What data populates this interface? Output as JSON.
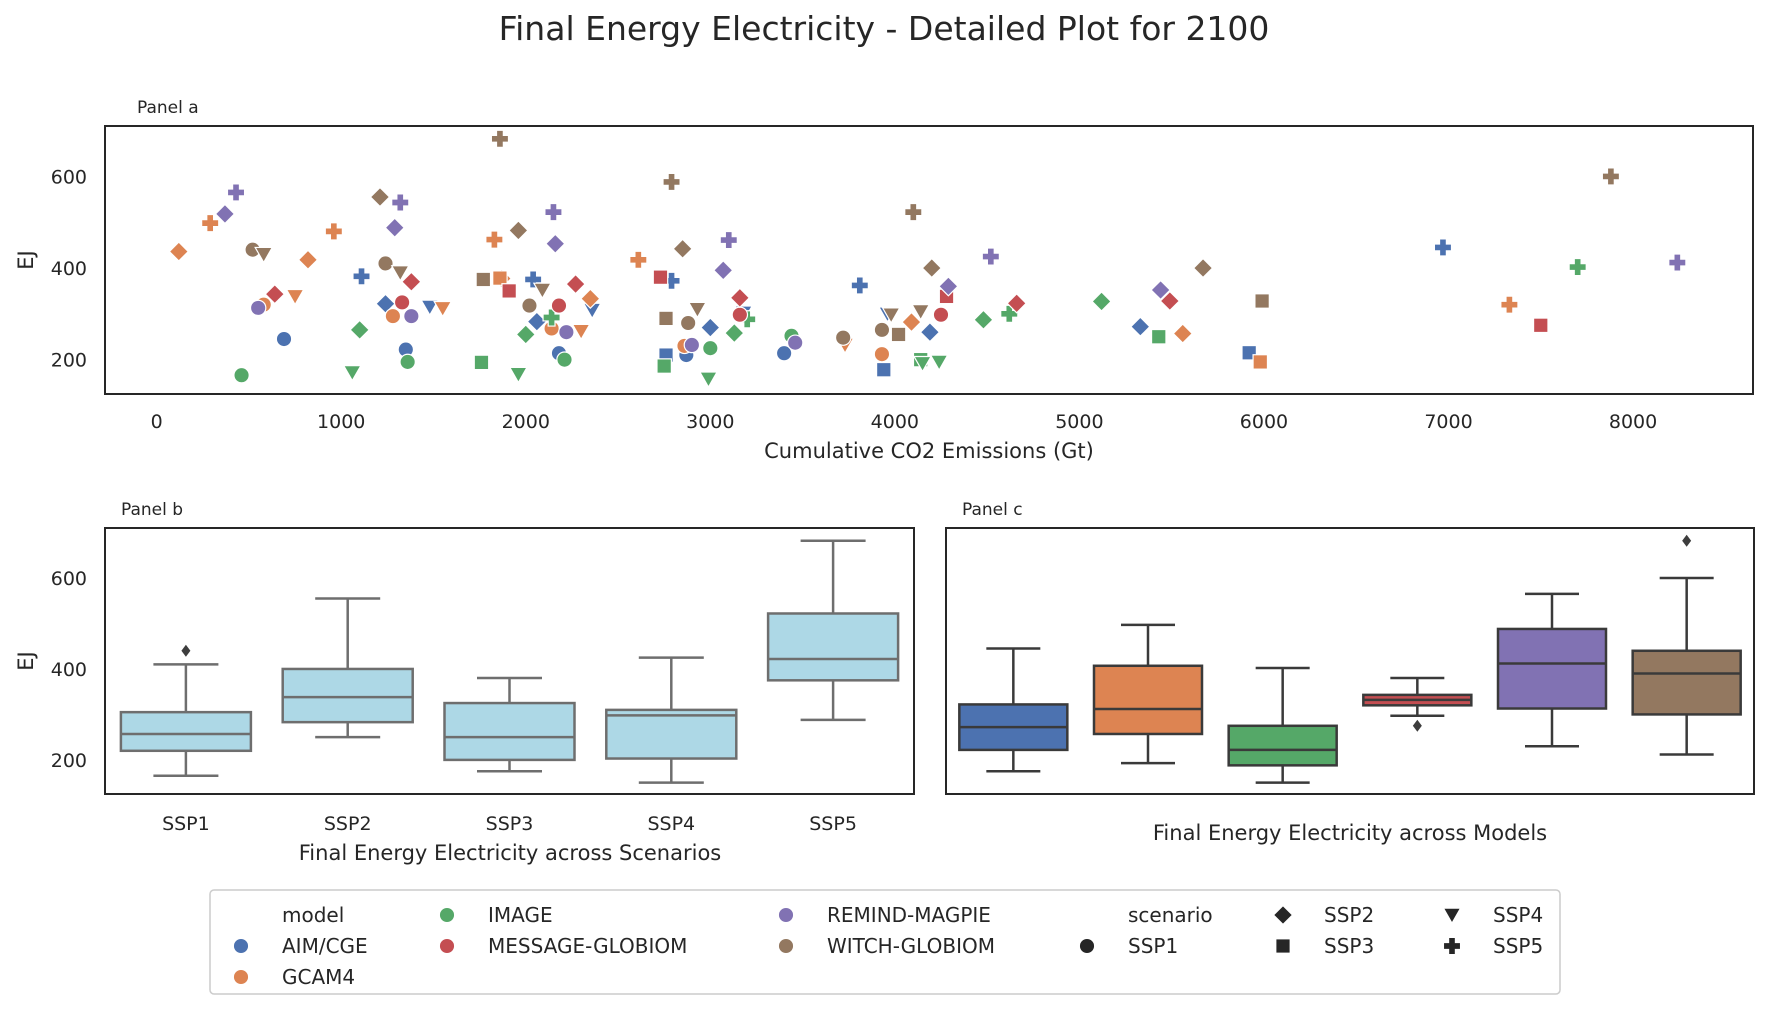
{
  "title": "Final Energy Electricity - Detailed Plot for 2100",
  "colors": {
    "AIM/CGE": "#4c72b0",
    "GCAM4": "#dd8452",
    "IMAGE": "#55a868",
    "MESSAGE-GLOBIOM": "#c44e52",
    "REMIND-MAGPIE": "#8172b3",
    "WITCH-GLOBIOM": "#937860",
    "box_scenario": "#add8e6",
    "box_edge": "#6e6e6e",
    "axis": "#262626"
  },
  "markers": {
    "SSP1": "circle",
    "SSP2": "diamond",
    "SSP3": "square",
    "SSP4": "triangle-down",
    "SSP5": "plus"
  },
  "chart_data": [
    {
      "type": "scatter",
      "panel_label": "Panel a",
      "xlabel": "Cumulative CO2 Emissions (Gt)",
      "ylabel": "EJ",
      "xlim": [
        -280,
        8650
      ],
      "ylim": [
        125,
        710
      ],
      "xticks": [
        0,
        1000,
        2000,
        3000,
        4000,
        5000,
        6000,
        7000,
        8000
      ],
      "yticks": [
        200,
        400,
        600
      ],
      "grid": false,
      "points": [
        {
          "model": "AIM/CGE",
          "scenario": "SSP1",
          "x": 690,
          "y": 245
        },
        {
          "model": "AIM/CGE",
          "scenario": "SSP1",
          "x": 1350,
          "y": 222
        },
        {
          "model": "AIM/CGE",
          "scenario": "SSP1",
          "x": 2180,
          "y": 214
        },
        {
          "model": "AIM/CGE",
          "scenario": "SSP1",
          "x": 2870,
          "y": 210
        },
        {
          "model": "AIM/CGE",
          "scenario": "SSP1",
          "x": 3400,
          "y": 214
        },
        {
          "model": "AIM/CGE",
          "scenario": "SSP2",
          "x": 1240,
          "y": 322
        },
        {
          "model": "AIM/CGE",
          "scenario": "SSP2",
          "x": 2060,
          "y": 283
        },
        {
          "model": "AIM/CGE",
          "scenario": "SSP2",
          "x": 3000,
          "y": 270
        },
        {
          "model": "AIM/CGE",
          "scenario": "SSP2",
          "x": 4190,
          "y": 260
        },
        {
          "model": "AIM/CGE",
          "scenario": "SSP2",
          "x": 5330,
          "y": 272
        },
        {
          "model": "AIM/CGE",
          "scenario": "SSP3",
          "x": 3940,
          "y": 178
        },
        {
          "model": "AIM/CGE",
          "scenario": "SSP3",
          "x": 5920,
          "y": 215
        },
        {
          "model": "AIM/CGE",
          "scenario": "SSP3",
          "x": 2760,
          "y": 210
        },
        {
          "model": "AIM/CGE",
          "scenario": "SSP4",
          "x": 1480,
          "y": 315
        },
        {
          "model": "AIM/CGE",
          "scenario": "SSP4",
          "x": 2360,
          "y": 308
        },
        {
          "model": "AIM/CGE",
          "scenario": "SSP4",
          "x": 3180,
          "y": 302
        },
        {
          "model": "AIM/CGE",
          "scenario": "SSP4",
          "x": 3960,
          "y": 300
        },
        {
          "model": "AIM/CGE",
          "scenario": "SSP5",
          "x": 1110,
          "y": 382
        },
        {
          "model": "AIM/CGE",
          "scenario": "SSP5",
          "x": 2040,
          "y": 375
        },
        {
          "model": "AIM/CGE",
          "scenario": "SSP5",
          "x": 2790,
          "y": 372
        },
        {
          "model": "AIM/CGE",
          "scenario": "SSP5",
          "x": 3810,
          "y": 362
        },
        {
          "model": "AIM/CGE",
          "scenario": "SSP5",
          "x": 6970,
          "y": 445
        },
        {
          "model": "GCAM4",
          "scenario": "SSP1",
          "x": 580,
          "y": 320
        },
        {
          "model": "GCAM4",
          "scenario": "SSP1",
          "x": 1280,
          "y": 295
        },
        {
          "model": "GCAM4",
          "scenario": "SSP1",
          "x": 2140,
          "y": 268
        },
        {
          "model": "GCAM4",
          "scenario": "SSP1",
          "x": 2860,
          "y": 230
        },
        {
          "model": "GCAM4",
          "scenario": "SSP1",
          "x": 3930,
          "y": 212
        },
        {
          "model": "GCAM4",
          "scenario": "SSP2",
          "x": 120,
          "y": 436
        },
        {
          "model": "GCAM4",
          "scenario": "SSP2",
          "x": 820,
          "y": 418
        },
        {
          "model": "GCAM4",
          "scenario": "SSP2",
          "x": 1870,
          "y": 377
        },
        {
          "model": "GCAM4",
          "scenario": "SSP2",
          "x": 2350,
          "y": 333
        },
        {
          "model": "GCAM4",
          "scenario": "SSP2",
          "x": 4090,
          "y": 282
        },
        {
          "model": "GCAM4",
          "scenario": "SSP2",
          "x": 5560,
          "y": 257
        },
        {
          "model": "GCAM4",
          "scenario": "SSP3",
          "x": 1860,
          "y": 378
        },
        {
          "model": "GCAM4",
          "scenario": "SSP3",
          "x": 5980,
          "y": 195
        },
        {
          "model": "GCAM4",
          "scenario": "SSP4",
          "x": 750,
          "y": 338
        },
        {
          "model": "GCAM4",
          "scenario": "SSP4",
          "x": 1550,
          "y": 312
        },
        {
          "model": "GCAM4",
          "scenario": "SSP4",
          "x": 2300,
          "y": 262
        },
        {
          "model": "GCAM4",
          "scenario": "SSP4",
          "x": 3730,
          "y": 232
        },
        {
          "model": "GCAM4",
          "scenario": "SSP5",
          "x": 290,
          "y": 498
        },
        {
          "model": "GCAM4",
          "scenario": "SSP5",
          "x": 960,
          "y": 480
        },
        {
          "model": "GCAM4",
          "scenario": "SSP5",
          "x": 1830,
          "y": 462
        },
        {
          "model": "GCAM4",
          "scenario": "SSP5",
          "x": 2610,
          "y": 418
        },
        {
          "model": "GCAM4",
          "scenario": "SSP5",
          "x": 7330,
          "y": 320
        },
        {
          "model": "IMAGE",
          "scenario": "SSP1",
          "x": 460,
          "y": 166
        },
        {
          "model": "IMAGE",
          "scenario": "SSP1",
          "x": 1360,
          "y": 195
        },
        {
          "model": "IMAGE",
          "scenario": "SSP1",
          "x": 2210,
          "y": 200
        },
        {
          "model": "IMAGE",
          "scenario": "SSP1",
          "x": 3000,
          "y": 225
        },
        {
          "model": "IMAGE",
          "scenario": "SSP1",
          "x": 3440,
          "y": 252
        },
        {
          "model": "IMAGE",
          "scenario": "SSP2",
          "x": 1100,
          "y": 265
        },
        {
          "model": "IMAGE",
          "scenario": "SSP2",
          "x": 2000,
          "y": 255
        },
        {
          "model": "IMAGE",
          "scenario": "SSP2",
          "x": 3130,
          "y": 258
        },
        {
          "model": "IMAGE",
          "scenario": "SSP2",
          "x": 4480,
          "y": 287
        },
        {
          "model": "IMAGE",
          "scenario": "SSP2",
          "x": 5120,
          "y": 327
        },
        {
          "model": "IMAGE",
          "scenario": "SSP3",
          "x": 1760,
          "y": 194
        },
        {
          "model": "IMAGE",
          "scenario": "SSP3",
          "x": 2750,
          "y": 186
        },
        {
          "model": "IMAGE",
          "scenario": "SSP3",
          "x": 5430,
          "y": 250
        },
        {
          "model": "IMAGE",
          "scenario": "SSP3",
          "x": 4140,
          "y": 200
        },
        {
          "model": "IMAGE",
          "scenario": "SSP4",
          "x": 1060,
          "y": 172
        },
        {
          "model": "IMAGE",
          "scenario": "SSP4",
          "x": 1960,
          "y": 168
        },
        {
          "model": "IMAGE",
          "scenario": "SSP4",
          "x": 2990,
          "y": 158
        },
        {
          "model": "IMAGE",
          "scenario": "SSP4",
          "x": 4150,
          "y": 192
        },
        {
          "model": "IMAGE",
          "scenario": "SSP4",
          "x": 4240,
          "y": 195
        },
        {
          "model": "IMAGE",
          "scenario": "SSP5",
          "x": 2140,
          "y": 292
        },
        {
          "model": "IMAGE",
          "scenario": "SSP5",
          "x": 4620,
          "y": 300
        },
        {
          "model": "IMAGE",
          "scenario": "SSP5",
          "x": 7700,
          "y": 402
        },
        {
          "model": "IMAGE",
          "scenario": "SSP5",
          "x": 3200,
          "y": 288
        },
        {
          "model": "MESSAGE-GLOBIOM",
          "scenario": "SSP1",
          "x": 1330,
          "y": 325
        },
        {
          "model": "MESSAGE-GLOBIOM",
          "scenario": "SSP1",
          "x": 2180,
          "y": 318
        },
        {
          "model": "MESSAGE-GLOBIOM",
          "scenario": "SSP1",
          "x": 3160,
          "y": 298
        },
        {
          "model": "MESSAGE-GLOBIOM",
          "scenario": "SSP1",
          "x": 4250,
          "y": 298
        },
        {
          "model": "MESSAGE-GLOBIOM",
          "scenario": "SSP2",
          "x": 640,
          "y": 343
        },
        {
          "model": "MESSAGE-GLOBIOM",
          "scenario": "SSP2",
          "x": 1380,
          "y": 370
        },
        {
          "model": "MESSAGE-GLOBIOM",
          "scenario": "SSP2",
          "x": 2270,
          "y": 365
        },
        {
          "model": "MESSAGE-GLOBIOM",
          "scenario": "SSP2",
          "x": 3160,
          "y": 335
        },
        {
          "model": "MESSAGE-GLOBIOM",
          "scenario": "SSP2",
          "x": 4660,
          "y": 323
        },
        {
          "model": "MESSAGE-GLOBIOM",
          "scenario": "SSP2",
          "x": 5490,
          "y": 328
        },
        {
          "model": "MESSAGE-GLOBIOM",
          "scenario": "SSP3",
          "x": 1910,
          "y": 350
        },
        {
          "model": "MESSAGE-GLOBIOM",
          "scenario": "SSP3",
          "x": 2730,
          "y": 380
        },
        {
          "model": "MESSAGE-GLOBIOM",
          "scenario": "SSP3",
          "x": 4280,
          "y": 338
        },
        {
          "model": "MESSAGE-GLOBIOM",
          "scenario": "SSP3",
          "x": 7500,
          "y": 275
        },
        {
          "model": "REMIND-MAGPIE",
          "scenario": "SSP1",
          "x": 550,
          "y": 313
        },
        {
          "model": "REMIND-MAGPIE",
          "scenario": "SSP1",
          "x": 1380,
          "y": 295
        },
        {
          "model": "REMIND-MAGPIE",
          "scenario": "SSP1",
          "x": 2220,
          "y": 260
        },
        {
          "model": "REMIND-MAGPIE",
          "scenario": "SSP1",
          "x": 2900,
          "y": 232
        },
        {
          "model": "REMIND-MAGPIE",
          "scenario": "SSP1",
          "x": 3460,
          "y": 237
        },
        {
          "model": "REMIND-MAGPIE",
          "scenario": "SSP2",
          "x": 370,
          "y": 518
        },
        {
          "model": "REMIND-MAGPIE",
          "scenario": "SSP2",
          "x": 1290,
          "y": 488
        },
        {
          "model": "REMIND-MAGPIE",
          "scenario": "SSP2",
          "x": 2160,
          "y": 453
        },
        {
          "model": "REMIND-MAGPIE",
          "scenario": "SSP2",
          "x": 3070,
          "y": 395
        },
        {
          "model": "REMIND-MAGPIE",
          "scenario": "SSP2",
          "x": 4290,
          "y": 360
        },
        {
          "model": "REMIND-MAGPIE",
          "scenario": "SSP2",
          "x": 5440,
          "y": 352
        },
        {
          "model": "REMIND-MAGPIE",
          "scenario": "SSP5",
          "x": 430,
          "y": 565
        },
        {
          "model": "REMIND-MAGPIE",
          "scenario": "SSP5",
          "x": 1320,
          "y": 543
        },
        {
          "model": "REMIND-MAGPIE",
          "scenario": "SSP5",
          "x": 2150,
          "y": 522
        },
        {
          "model": "REMIND-MAGPIE",
          "scenario": "SSP5",
          "x": 3100,
          "y": 461
        },
        {
          "model": "REMIND-MAGPIE",
          "scenario": "SSP5",
          "x": 4520,
          "y": 425
        },
        {
          "model": "REMIND-MAGPIE",
          "scenario": "SSP5",
          "x": 8240,
          "y": 412
        },
        {
          "model": "WITCH-GLOBIOM",
          "scenario": "SSP1",
          "x": 520,
          "y": 440
        },
        {
          "model": "WITCH-GLOBIOM",
          "scenario": "SSP1",
          "x": 1240,
          "y": 410
        },
        {
          "model": "WITCH-GLOBIOM",
          "scenario": "SSP1",
          "x": 2020,
          "y": 318
        },
        {
          "model": "WITCH-GLOBIOM",
          "scenario": "SSP1",
          "x": 2880,
          "y": 280
        },
        {
          "model": "WITCH-GLOBIOM",
          "scenario": "SSP1",
          "x": 3720,
          "y": 248
        },
        {
          "model": "WITCH-GLOBIOM",
          "scenario": "SSP1",
          "x": 3930,
          "y": 265
        },
        {
          "model": "WITCH-GLOBIOM",
          "scenario": "SSP2",
          "x": 1210,
          "y": 555
        },
        {
          "model": "WITCH-GLOBIOM",
          "scenario": "SSP2",
          "x": 1960,
          "y": 482
        },
        {
          "model": "WITCH-GLOBIOM",
          "scenario": "SSP2",
          "x": 2850,
          "y": 442
        },
        {
          "model": "WITCH-GLOBIOM",
          "scenario": "SSP2",
          "x": 4200,
          "y": 400
        },
        {
          "model": "WITCH-GLOBIOM",
          "scenario": "SSP2",
          "x": 5670,
          "y": 400
        },
        {
          "model": "WITCH-GLOBIOM",
          "scenario": "SSP3",
          "x": 1770,
          "y": 375
        },
        {
          "model": "WITCH-GLOBIOM",
          "scenario": "SSP3",
          "x": 2760,
          "y": 290
        },
        {
          "model": "WITCH-GLOBIOM",
          "scenario": "SSP3",
          "x": 4020,
          "y": 255
        },
        {
          "model": "WITCH-GLOBIOM",
          "scenario": "SSP3",
          "x": 5990,
          "y": 328
        },
        {
          "model": "WITCH-GLOBIOM",
          "scenario": "SSP4",
          "x": 580,
          "y": 430
        },
        {
          "model": "WITCH-GLOBIOM",
          "scenario": "SSP4",
          "x": 1320,
          "y": 390
        },
        {
          "model": "WITCH-GLOBIOM",
          "scenario": "SSP4",
          "x": 2090,
          "y": 352
        },
        {
          "model": "WITCH-GLOBIOM",
          "scenario": "SSP4",
          "x": 2930,
          "y": 310
        },
        {
          "model": "WITCH-GLOBIOM",
          "scenario": "SSP4",
          "x": 3980,
          "y": 298
        },
        {
          "model": "WITCH-GLOBIOM",
          "scenario": "SSP4",
          "x": 4140,
          "y": 305
        },
        {
          "model": "WITCH-GLOBIOM",
          "scenario": "SSP5",
          "x": 1860,
          "y": 682
        },
        {
          "model": "WITCH-GLOBIOM",
          "scenario": "SSP5",
          "x": 2790,
          "y": 588
        },
        {
          "model": "WITCH-GLOBIOM",
          "scenario": "SSP5",
          "x": 4100,
          "y": 522
        },
        {
          "model": "WITCH-GLOBIOM",
          "scenario": "SSP5",
          "x": 7880,
          "y": 600
        }
      ]
    },
    {
      "type": "box",
      "panel_label": "Panel b",
      "xlabel": "Final Energy Electricity across Scenarios",
      "ylabel": "EJ",
      "ylim": [
        125,
        710
      ],
      "yticks": [
        200,
        400,
        600
      ],
      "grid": false,
      "categories": [
        "SSP1",
        "SSP2",
        "SSP3",
        "SSP4",
        "SSP5"
      ],
      "boxes": [
        {
          "category": "SSP1",
          "whisker_low": 165,
          "q1": 220,
          "median": 257,
          "q3": 305,
          "whisker_high": 410,
          "outliers": [
            440
          ]
        },
        {
          "category": "SSP2",
          "whisker_low": 250,
          "q1": 283,
          "median": 338,
          "q3": 400,
          "whisker_high": 555,
          "outliers": []
        },
        {
          "category": "SSP3",
          "whisker_low": 175,
          "q1": 200,
          "median": 250,
          "q3": 325,
          "whisker_high": 380,
          "outliers": []
        },
        {
          "category": "SSP4",
          "whisker_low": 150,
          "q1": 203,
          "median": 298,
          "q3": 310,
          "whisker_high": 425,
          "outliers": []
        },
        {
          "category": "SSP5",
          "whisker_low": 288,
          "q1": 375,
          "median": 422,
          "q3": 522,
          "whisker_high": 682,
          "outliers": []
        }
      ]
    },
    {
      "type": "box",
      "panel_label": "Panel c",
      "xlabel": "Final Energy Electricity across Models",
      "ylim": [
        125,
        710
      ],
      "grid": false,
      "categories": [
        "AIM/CGE",
        "GCAM4",
        "IMAGE",
        "MESSAGE-GLOBIOM",
        "REMIND-MAGPIE",
        "WITCH-GLOBIOM"
      ],
      "boxes": [
        {
          "category": "AIM/CGE",
          "whisker_low": 175,
          "q1": 222,
          "median": 272,
          "q3": 322,
          "whisker_high": 445,
          "outliers": []
        },
        {
          "category": "GCAM4",
          "whisker_low": 193,
          "q1": 257,
          "median": 312,
          "q3": 407,
          "whisker_high": 497,
          "outliers": []
        },
        {
          "category": "IMAGE",
          "whisker_low": 150,
          "q1": 188,
          "median": 222,
          "q3": 275,
          "whisker_high": 402,
          "outliers": []
        },
        {
          "category": "MESSAGE-GLOBIOM",
          "whisker_low": 297,
          "q1": 320,
          "median": 332,
          "q3": 343,
          "whisker_high": 380,
          "outliers": [
            275
          ]
        },
        {
          "category": "REMIND-MAGPIE",
          "whisker_low": 230,
          "q1": 313,
          "median": 412,
          "q3": 488,
          "whisker_high": 565,
          "outliers": []
        },
        {
          "category": "WITCH-GLOBIOM",
          "whisker_low": 212,
          "q1": 300,
          "median": 390,
          "q3": 440,
          "whisker_high": 600,
          "outliers": [
            682
          ]
        }
      ]
    }
  ],
  "legend": {
    "model_title": "model",
    "models": [
      "AIM/CGE",
      "GCAM4",
      "IMAGE",
      "MESSAGE-GLOBIOM",
      "REMIND-MAGPIE",
      "WITCH-GLOBIOM"
    ],
    "scenario_title": "scenario",
    "scenarios": [
      "SSP1",
      "SSP2",
      "SSP3",
      "SSP4",
      "SSP5"
    ]
  }
}
